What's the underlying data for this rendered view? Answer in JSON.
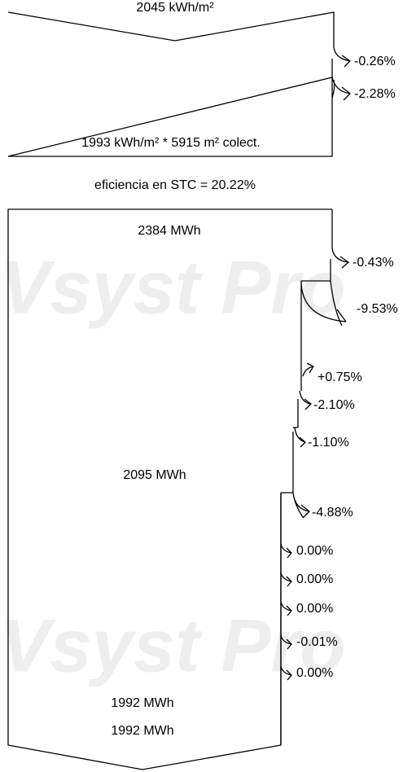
{
  "watermark": "Vsyst Pro",
  "irradiation": {
    "global": "2045 kWh/m²",
    "losses": [
      "-0.26%",
      "-2.28%"
    ],
    "collector": "1993 kWh/m² * 5915 m² colect."
  },
  "efficiency": "eficiencia en STC = 20.22%",
  "energy": {
    "nominal": "2384 MWh",
    "losses": [
      "-0.43%",
      "-9.53%",
      "+0.75%",
      "-2.10%",
      "-1.10%",
      "-4.88%",
      "0.00%",
      "0.00%",
      "0.00%",
      "-0.01%",
      "0.00%"
    ],
    "array": "2095 MWh",
    "output": "1992 MWh",
    "grid": "1992 MWh"
  }
}
